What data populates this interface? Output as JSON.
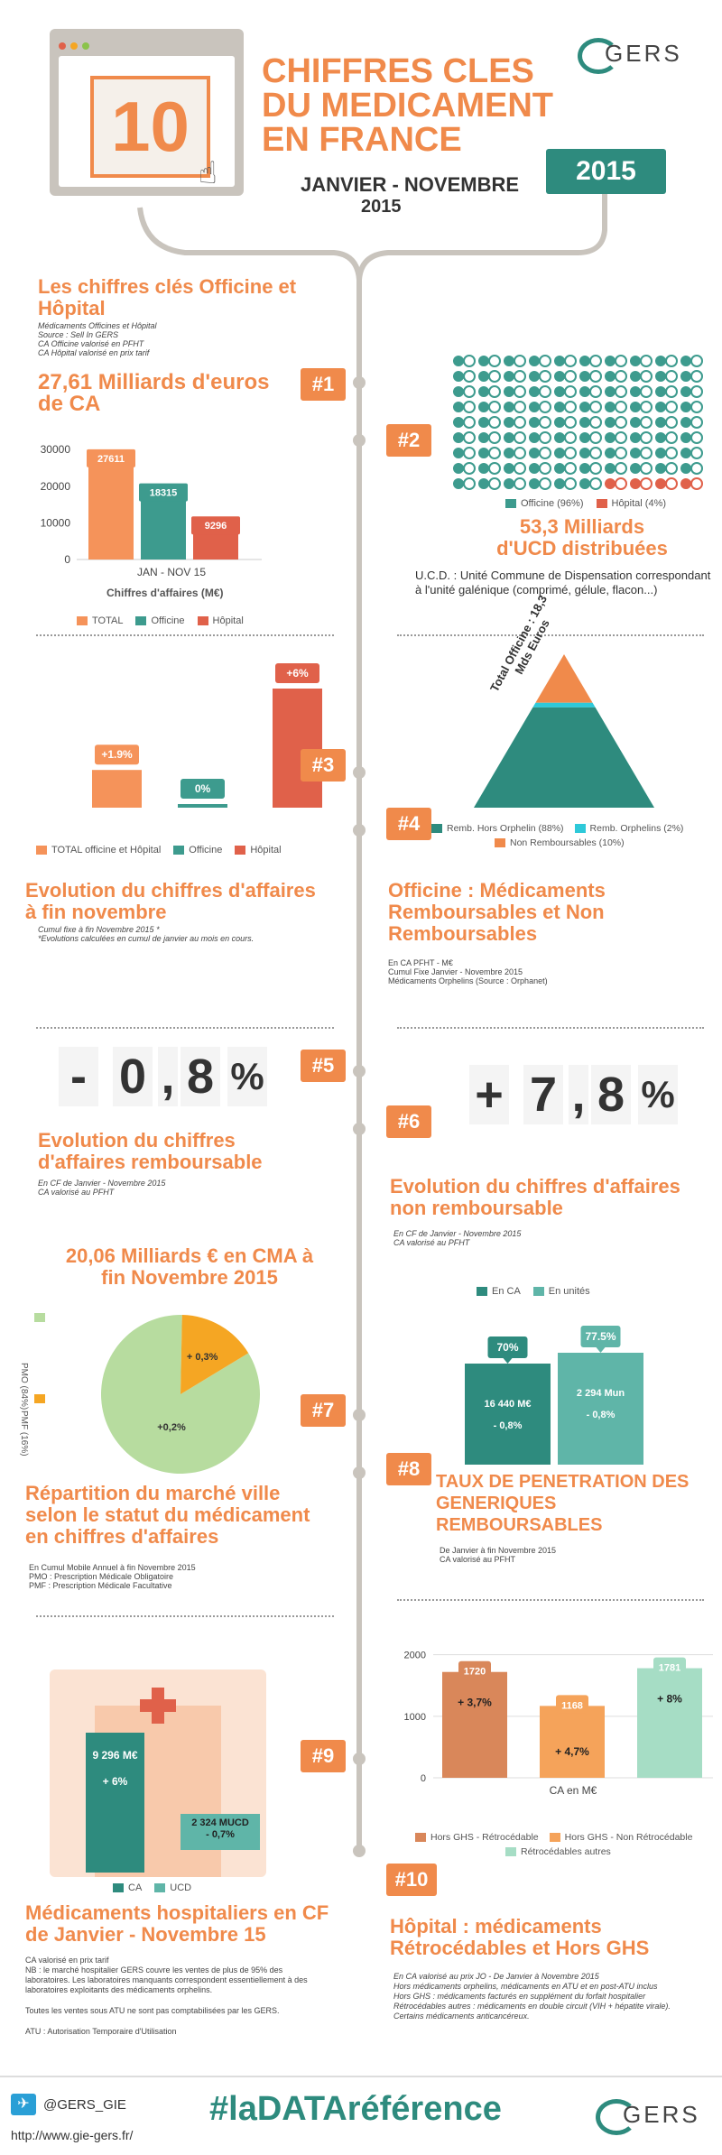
{
  "header": {
    "big_number": "10",
    "title_lines": [
      "CHIFFRES CLES",
      "DU MEDICAMENT",
      "EN FRANCE"
    ],
    "period_line1": "JANVIER - NOVEMBRE",
    "period_line2": "2015",
    "year_badge": "2015",
    "logo_text": "GERS"
  },
  "section1": {
    "badge": "#1",
    "title": "Les chiffres clés Officine et Hôpital",
    "notes": [
      "Médicaments Officines et Hôpital",
      "Source : Sell In GERS",
      "CA Officine valorisé en PFHT",
      "CA Hôpital valorisé en prix tarif"
    ],
    "headline": "27,61  Milliards d'euros de CA",
    "xlabel": "Chiffres d'affaires (M€)"
  },
  "section2": {
    "badge": "#2",
    "headline": "53,3  Milliards d'UCD distribuées",
    "desc": "U.C.D. : Unité Commune de Dispensation correspondant à l'unité galénique (comprimé, gélule, flacon...)",
    "legend": [
      "Officine (96%)",
      "Hôpital (4%)"
    ]
  },
  "section3": {
    "badge": "#3",
    "title": "Evolution du chiffres d'affaires à fin novembre",
    "notes": [
      "Cumul fixe à fin Novembre  2015 *",
      "*Evolutions calculées en cumul de janvier au mois en cours."
    ]
  },
  "section4": {
    "badge": "#4",
    "title": "Officine : Médicaments Remboursables et Non Remboursables",
    "notes": [
      "En CA PFHT - M€",
      "Cumul Fixe Janvier - Novembre  2015",
      "Médicaments Orphelins (Source : Orphanet)"
    ],
    "pyramid_label_1": "Total Officine : 18,3",
    "pyramid_label_2": "Mds Euros"
  },
  "section5": {
    "badge": "#5",
    "digits": [
      "-",
      "0",
      ",",
      "8",
      "%"
    ],
    "title": "Evolution du chiffres d'affaires remboursable",
    "notes": [
      "En CF de Janvier - Novembre  2015",
      "CA valorisé au PFHT"
    ]
  },
  "section6": {
    "badge": "#6",
    "digits": [
      "+",
      "7",
      ",",
      "8",
      "%"
    ],
    "title": "Evolution du chiffres d'affaires non remboursable",
    "notes": [
      "En CF de Janvier - Novembre  2015",
      "CA valorisé au PFHT"
    ]
  },
  "section7": {
    "badge": "#7",
    "headline": "20,06 Milliards € en CMA à fin Novembre 2015",
    "title": "Répartition du marché ville selon le statut du médicament en chiffres d'affaires",
    "notes": [
      "En Cumul Mobile Annuel à fin Novembre  2015",
      "PMO : Prescription Médicale Obligatoire",
      "PMF : Prescription Médicale Facultative"
    ]
  },
  "section8": {
    "badge": "#8",
    "title": "TAUX DE PENETRATION DES GENERIQUES REMBOURSABLES",
    "notes": [
      "De Janvier à fin Novembre  2015",
      "CA valorisé au PFHT"
    ]
  },
  "section9": {
    "badge": "#9",
    "title": "Médicaments hospitaliers en CF de Janvier - Novembre 15",
    "notes": [
      "CA valorisé en prix tarif",
      "NB : le marché hospitalier GERS couvre les ventes de plus de 95% des laboratoires. Les laboratoires manquants correspondent essentiellement à des laboratoires exploitants des médicaments orphelins.",
      "Toutes les ventes sous ATU ne sont pas comptabilisées par les GERS.",
      "ATU : Autorisation Temporaire d'Utilisation"
    ],
    "ca_value": "9 296 M€",
    "ca_evol": "+ 6%",
    "ucd_value": "2 324 MUCD",
    "ucd_evol": "- 0,7%",
    "legend": [
      "CA",
      "UCD"
    ]
  },
  "section10": {
    "badge": "#10",
    "title": "Hôpital : médicaments Rétrocédables et Hors GHS",
    "notes": [
      "En CA valorisé au prix JO - De Janvier à Novembre  2015",
      "Hors médicaments orphelins, médicaments en ATU et en post-ATU inclus",
      "Hors GHS : médicaments facturés en supplément du forfait hospitalier",
      "Rétrocédables autres : médicaments en double circuit (VIH + hépatite virale). Certains médicaments anticancéreux."
    ]
  },
  "footer": {
    "twitter": "@GERS_GIE",
    "url": "http://www.gie-gers.fr/",
    "hashtag": "#laDATAréférence",
    "logo_text": "GERS"
  },
  "colors": {
    "orange": "#f08a4b",
    "teal": "#2e8b7e",
    "light_teal": "#6fc0b1",
    "red": "#e0614a",
    "grey_line": "#c9c4bd"
  },
  "chart_data": [
    {
      "type": "bar",
      "title": "",
      "categories": [
        "JAN - NOV 15"
      ],
      "series": [
        {
          "name": "TOTAL",
          "values": [
            27611
          ],
          "color": "#f5935a"
        },
        {
          "name": "Officine",
          "values": [
            18315
          ],
          "color": "#3d9b8e"
        },
        {
          "name": "Hôpital",
          "values": [
            9296
          ],
          "color": "#e0614a"
        }
      ],
      "yticks": [
        0,
        10000,
        20000,
        30000
      ],
      "ylim": [
        0,
        32000
      ],
      "xlabel": "Chiffres d'affaires (M€)"
    },
    {
      "type": "bar",
      "title": "",
      "series": [
        {
          "name": "TOTAL officine et Hôpital",
          "values": [
            1.9
          ],
          "label": "+1.9%",
          "color": "#f5935a"
        },
        {
          "name": "Officine",
          "values": [
            0
          ],
          "label": "0%",
          "color": "#3d9b8e"
        },
        {
          "name": "Hôpital",
          "values": [
            6
          ],
          "label": "+6%",
          "color": "#e0614a"
        }
      ]
    },
    {
      "type": "pie",
      "title": "",
      "slices": [
        {
          "name": "Remb. Hors Orphelin (88%)",
          "value": 88,
          "color": "#2e8b7e"
        },
        {
          "name": "Remb. Orphelins (2%)",
          "value": 2,
          "color": "#2ec9d9"
        },
        {
          "name": "Non Remboursables (10%)",
          "value": 10,
          "color": "#f08a4b"
        }
      ]
    },
    {
      "type": "pie",
      "title": "",
      "slices": [
        {
          "name": "PMO (84%)",
          "value": 84,
          "label": "+0,2%",
          "color": "#b7dc9f"
        },
        {
          "name": "PMF (16%)",
          "value": 16,
          "label": "+ 0,3%",
          "color": "#f5a623"
        }
      ]
    },
    {
      "type": "bar",
      "title": "",
      "series": [
        {
          "name": "En CA",
          "values": [
            70
          ],
          "label": "70%",
          "inner": [
            "16 440 M€",
            "- 0,8%"
          ],
          "color": "#2e8b7e"
        },
        {
          "name": "En unités",
          "values": [
            77.5
          ],
          "label": "77.5%",
          "inner": [
            "2 294 Mun",
            "- 0,8%"
          ],
          "color": "#5fb5a8"
        }
      ]
    },
    {
      "type": "bar",
      "title": "",
      "categories": [
        "CA en M€"
      ],
      "xlabel": "CA en M€",
      "series": [
        {
          "name": "Hors GHS - Rétrocédable",
          "values": [
            1720
          ],
          "evol": "+ 3,7%",
          "color": "#d9875a"
        },
        {
          "name": "Hors GHS - Non Rétrocédable",
          "values": [
            1168
          ],
          "evol": "+ 4,7%",
          "color": "#f5a35a"
        },
        {
          "name": "Rétrocédables autres",
          "values": [
            1781
          ],
          "evol": "+ 8%",
          "color": "#a6ddc5"
        }
      ],
      "yticks": [
        0,
        1000,
        2000
      ],
      "ylim": [
        0,
        2200
      ]
    },
    {
      "type": "bar",
      "title": "",
      "series": [
        {
          "name": "Officine (96%)",
          "values": [
            96
          ],
          "color": "#3d9b8e"
        },
        {
          "name": "Hôpital (4%)",
          "values": [
            4
          ],
          "color": "#e0614a"
        }
      ]
    }
  ]
}
